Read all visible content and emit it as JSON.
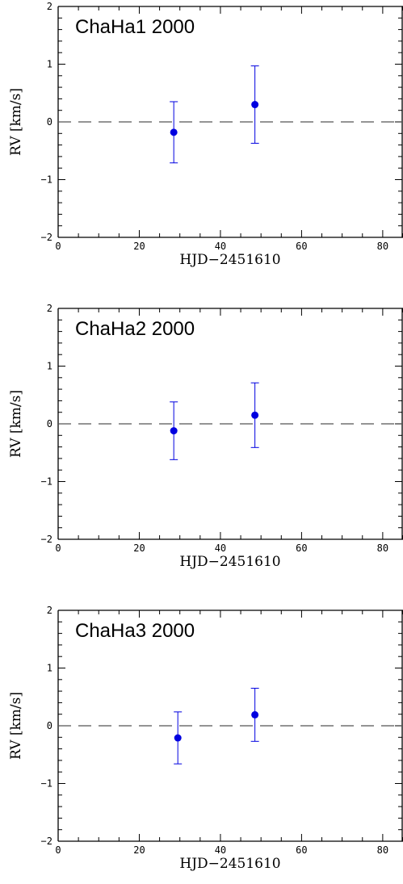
{
  "chart_data": [
    {
      "type": "scatter",
      "title": "ChaHa1 2000",
      "xlabel": "HJD−2451610",
      "ylabel": "RV [km/s]",
      "xlim": [
        0,
        85
      ],
      "ylim": [
        -2,
        2
      ],
      "x_ticks": [
        "0",
        "20",
        "40",
        "60",
        "80"
      ],
      "y_ticks": [
        "2",
        "1",
        "0",
        "−1",
        "−2"
      ],
      "reference_line": {
        "y": 0,
        "style": "dashed"
      },
      "points": [
        {
          "x": 28.5,
          "y": -0.18,
          "err": 0.53
        },
        {
          "x": 48.5,
          "y": 0.3,
          "err": 0.67
        }
      ]
    },
    {
      "type": "scatter",
      "title": "ChaHa2 2000",
      "xlabel": "HJD−2451610",
      "ylabel": "RV [km/s]",
      "xlim": [
        0,
        85
      ],
      "ylim": [
        -2,
        2
      ],
      "x_ticks": [
        "0",
        "20",
        "40",
        "60",
        "80"
      ],
      "y_ticks": [
        "2",
        "1",
        "0",
        "−1",
        "−2"
      ],
      "reference_line": {
        "y": 0,
        "style": "dashed"
      },
      "points": [
        {
          "x": 28.5,
          "y": -0.12,
          "err": 0.5
        },
        {
          "x": 48.5,
          "y": 0.15,
          "err": 0.56
        }
      ]
    },
    {
      "type": "scatter",
      "title": "ChaHa3 2000",
      "xlabel": "HJD−2451610",
      "ylabel": "RV [km/s]",
      "xlim": [
        0,
        85
      ],
      "ylim": [
        -2,
        2
      ],
      "x_ticks": [
        "0",
        "20",
        "40",
        "60",
        "80"
      ],
      "y_ticks": [
        "2",
        "1",
        "0",
        "−1",
        "−2"
      ],
      "reference_line": {
        "y": 0,
        "style": "dashed"
      },
      "points": [
        {
          "x": 29.5,
          "y": -0.21,
          "err": 0.45
        },
        {
          "x": 48.5,
          "y": 0.19,
          "err": 0.46
        }
      ]
    }
  ],
  "colors": {
    "marker": "#0000e0",
    "axes": "#000000",
    "reference_line": "#555555"
  }
}
